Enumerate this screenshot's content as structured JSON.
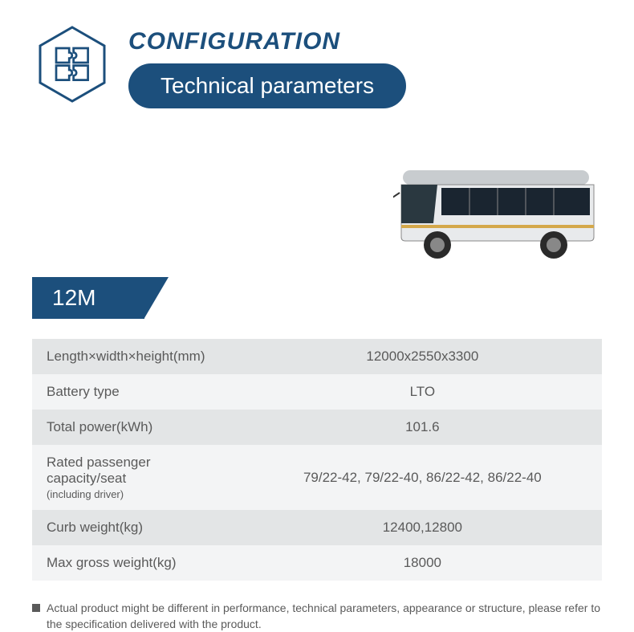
{
  "header": {
    "title": "CONFIGURATION",
    "subtitle": "Technical parameters"
  },
  "model": "12M",
  "specs": {
    "rows": [
      {
        "label": "Length×width×height(mm)",
        "sublabel": "",
        "value": "12000x2550x3300"
      },
      {
        "label": "Battery type",
        "sublabel": "",
        "value": "LTO"
      },
      {
        "label": "Total power(kWh)",
        "sublabel": "",
        "value": "101.6"
      },
      {
        "label": "Rated passenger capacity/seat",
        "sublabel": "(including driver)",
        "value": "79/22-42, 79/22-40, 86/22-42, 86/22-40"
      },
      {
        "label": "Curb weight(kg)",
        "sublabel": "",
        "value": "12400,12800"
      },
      {
        "label": "Max gross weight(kg)",
        "sublabel": "",
        "value": "18000"
      }
    ]
  },
  "footnote": "Actual product might be different in performance, technical parameters, appearance or structure, please refer to the specification delivered with the product.",
  "colors": {
    "primary": "#1c4f7c",
    "row_odd": "#e3e5e6",
    "row_even": "#f3f4f5",
    "text": "#5a5a5a"
  }
}
